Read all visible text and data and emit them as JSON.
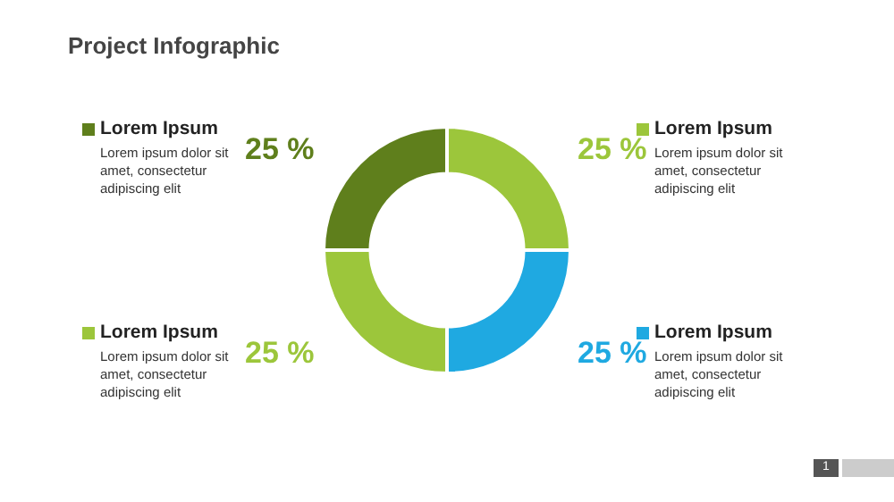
{
  "chart_data": {
    "type": "donut",
    "title": "Project Infographic",
    "categories": [
      "Lorem Ipsum",
      "Lorem Ipsum",
      "Lorem Ipsum",
      "Lorem Ipsum"
    ],
    "values": [
      25,
      25,
      25,
      25
    ],
    "colors": [
      "#5f7f1c",
      "#9cc63b",
      "#1fa9e1",
      "#9cc63b"
    ],
    "value_labels": [
      "25 %",
      "25 %",
      "25 %",
      "25 %"
    ],
    "annotations": [
      "Lorem ipsum dolor sit amet, consectetur adipiscing elit",
      "Lorem ipsum dolor sit amet, consectetur adipiscing elit",
      "Lorem ipsum dolor sit amet, consectetur adipiscing elit",
      "Lorem ipsum dolor sit amet, consectetur adipiscing elit",
      "1"
    ]
  }
}
